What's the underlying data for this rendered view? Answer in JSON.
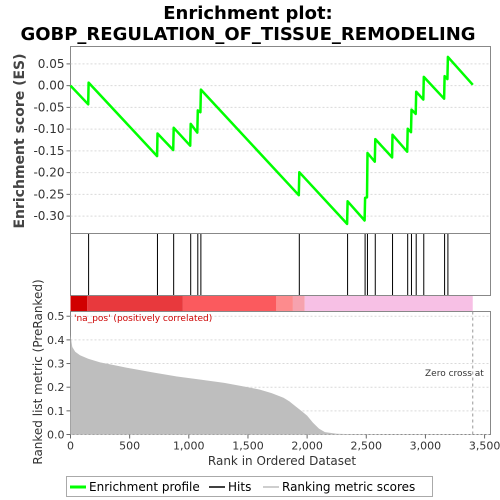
{
  "chart_data": {
    "type": "line",
    "title_lines": [
      "Enrichment plot:",
      "GOBP_REGULATION_OF_TISSUE_REMODELING"
    ],
    "panels": {
      "es": {
        "ylabel": "Enrichment score (ES)",
        "ylim": [
          -0.34,
          0.09
        ],
        "yticks": [
          0.05,
          0.0,
          -0.05,
          -0.1,
          -0.15,
          -0.2,
          -0.25,
          -0.3
        ],
        "ytick_labels": [
          "0.05",
          "0.00",
          "-0.05",
          "-0.10",
          "-0.15",
          "-0.20",
          "-0.25",
          "-0.30"
        ],
        "grid": true,
        "series": {
          "color": "#00ff00",
          "points": [
            [
              0,
              0
            ],
            [
              150,
              -0.043
            ],
            [
              153,
              0.007
            ],
            [
              732,
              -0.162
            ],
            [
              735,
              -0.11
            ],
            [
              868,
              -0.148
            ],
            [
              872,
              -0.097
            ],
            [
              1012,
              -0.138
            ],
            [
              1016,
              -0.088
            ],
            [
              1072,
              -0.108
            ],
            [
              1076,
              -0.057
            ],
            [
              1098,
              -0.061
            ],
            [
              1102,
              -0.009
            ],
            [
              1930,
              -0.252
            ],
            [
              1934,
              -0.199
            ],
            [
              2338,
              -0.318
            ],
            [
              2342,
              -0.266
            ],
            [
              2486,
              -0.31
            ],
            [
              2490,
              -0.258
            ],
            [
              2506,
              -0.257
            ],
            [
              2510,
              -0.155
            ],
            [
              2572,
              -0.175
            ],
            [
              2576,
              -0.123
            ],
            [
              2718,
              -0.165
            ],
            [
              2722,
              -0.113
            ],
            [
              2846,
              -0.152
            ],
            [
              2850,
              -0.099
            ],
            [
              2878,
              -0.107
            ],
            [
              2882,
              -0.055
            ],
            [
              2918,
              -0.065
            ],
            [
              2922,
              -0.014
            ],
            [
              2982,
              -0.032
            ],
            [
              2986,
              0.02
            ],
            [
              3158,
              -0.03
            ],
            [
              3162,
              0.022
            ],
            [
              3186,
              0.015
            ],
            [
              3190,
              0.066
            ],
            [
              3400,
              0.002
            ]
          ]
        }
      },
      "hits": {
        "positions": [
          153,
          735,
          872,
          1016,
          1076,
          1102,
          1934,
          2342,
          2490,
          2510,
          2576,
          2722,
          2850,
          2882,
          2922,
          2986,
          3162,
          3190
        ]
      },
      "ranked_metric": {
        "ylabel": "Ranked list metric (PreRanked)",
        "xlabel": "Rank in Ordered Dataset",
        "ylim": [
          0,
          0.52
        ],
        "yticks": [
          0,
          0.1,
          0.2,
          0.3,
          0.4,
          0.5
        ],
        "ytick_labels": [
          "0.0",
          "0.1",
          "0.2",
          "0.3",
          "0.4",
          "0.5"
        ],
        "xlim": [
          0,
          3550
        ],
        "xticks": [
          0,
          500,
          1000,
          1500,
          2000,
          2500,
          3000,
          3500
        ],
        "xtick_labels": [
          "0",
          "500",
          "1,000",
          "1,500",
          "2,000",
          "2,500",
          "3,000",
          "3,500"
        ],
        "fill_color": "#bebebe",
        "curve": [
          [
            0,
            0.42
          ],
          [
            15,
            0.37
          ],
          [
            40,
            0.35
          ],
          [
            80,
            0.335
          ],
          [
            150,
            0.32
          ],
          [
            250,
            0.305
          ],
          [
            400,
            0.29
          ],
          [
            500,
            0.28
          ],
          [
            700,
            0.262
          ],
          [
            900,
            0.245
          ],
          [
            1100,
            0.232
          ],
          [
            1300,
            0.218
          ],
          [
            1500,
            0.2
          ],
          [
            1600,
            0.19
          ],
          [
            1700,
            0.175
          ],
          [
            1800,
            0.155
          ],
          [
            1850,
            0.14
          ],
          [
            1900,
            0.12
          ],
          [
            1950,
            0.1
          ],
          [
            2000,
            0.08
          ],
          [
            2050,
            0.05
          ],
          [
            2100,
            0.025
          ],
          [
            2150,
            0.01
          ],
          [
            2250,
            0.003
          ],
          [
            2400,
            0.001
          ],
          [
            3400,
            0.0
          ]
        ],
        "pos_label": "'na_pos' (positively correlated)",
        "zero_cross_label": "Zero cross at",
        "zero_cross_rank": 3400,
        "color_bar": [
          {
            "from": 0,
            "to": 140,
            "color": "#d10000"
          },
          {
            "from": 140,
            "to": 950,
            "color": "#e8393d"
          },
          {
            "from": 950,
            "to": 1740,
            "color": "#fb5a5e"
          },
          {
            "from": 1740,
            "to": 1880,
            "color": "#fd8b8d"
          },
          {
            "from": 1880,
            "to": 1980,
            "color": "#f6a2ae"
          },
          {
            "from": 1980,
            "to": 3400,
            "color": "#f7c0e5"
          }
        ]
      }
    },
    "legend": {
      "placement": "bottom",
      "items": [
        {
          "label": "Enrichment profile",
          "color": "#00ff00"
        },
        {
          "label": "Hits",
          "color": "#000000"
        },
        {
          "label": "Ranking metric scores",
          "color": "#bebebe"
        }
      ]
    }
  }
}
